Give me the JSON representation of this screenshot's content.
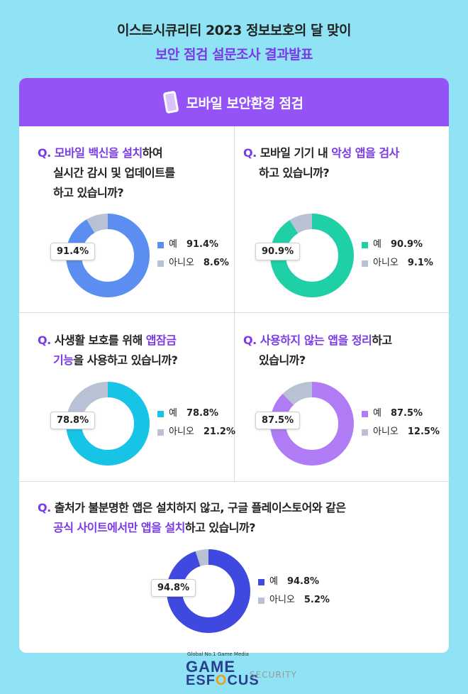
{
  "title": "이스트시큐리티 2023 정보보호의 달 맞이",
  "subtitle": "보안 점검 설문조사 결과발표",
  "section": {
    "title": "모바일 보안환경 점검",
    "icon": "phone-icon"
  },
  "colors": {
    "purple": "#9452f7",
    "accent": "#7a3ae8",
    "no": "#b8c2d4"
  },
  "questions": [
    {
      "q": "Q.",
      "lines": [
        [
          "",
          "모바일 백신을 설치",
          "하여"
        ],
        [
          "실시간 감시 및 업데이트를",
          "",
          ""
        ],
        [
          "하고 있습니까?",
          "",
          ""
        ]
      ]
    },
    {
      "q": "Q.",
      "lines": [
        [
          "모바일 기기 내 ",
          "악성 앱을 검사",
          ""
        ],
        [
          "하고 있습니까?",
          "",
          ""
        ]
      ]
    },
    {
      "q": "Q.",
      "lines": [
        [
          "사생활 보호를 위해 ",
          "앱잠금",
          ""
        ],
        [
          "",
          "기능",
          "을 사용하고 있습니까?"
        ]
      ]
    },
    {
      "q": "Q.",
      "lines": [
        [
          "",
          "사용하지 않는 앱을 정리",
          "하고"
        ],
        [
          "있습니까?",
          "",
          ""
        ]
      ]
    },
    {
      "q": "Q.",
      "lines": [
        [
          "출처가 불분명한 앱은 설치하지 않고, 구글 플레이스토어와 같은",
          "",
          ""
        ],
        [
          "",
          "공식 사이트에서만 앱을 설치",
          "하고 있습니까?"
        ]
      ]
    }
  ],
  "chart_data": [
    {
      "type": "pie",
      "categories": [
        "예",
        "아니오"
      ],
      "values": [
        91.4,
        8.6
      ],
      "labels": [
        "91.4%",
        "8.6%"
      ],
      "callout": "91.4%",
      "colors": [
        "#5b8ef0",
        "#b8c2d4"
      ]
    },
    {
      "type": "pie",
      "categories": [
        "예",
        "아니오"
      ],
      "values": [
        90.9,
        9.1
      ],
      "labels": [
        "90.9%",
        "9.1%"
      ],
      "callout": "90.9%",
      "colors": [
        "#1fcfa6",
        "#b8c2d4"
      ]
    },
    {
      "type": "pie",
      "categories": [
        "예",
        "아니오"
      ],
      "values": [
        78.8,
        21.2
      ],
      "labels": [
        "78.8%",
        "21.2%"
      ],
      "callout": "78.8%",
      "colors": [
        "#18c4e6",
        "#b8c2d4"
      ]
    },
    {
      "type": "pie",
      "categories": [
        "예",
        "아니오"
      ],
      "values": [
        87.5,
        12.5
      ],
      "labels": [
        "87.5%",
        "12.5%"
      ],
      "callout": "87.5%",
      "colors": [
        "#b07cf5",
        "#b8c2d4"
      ]
    },
    {
      "type": "pie",
      "categories": [
        "예",
        "아니오"
      ],
      "values": [
        94.8,
        5.2
      ],
      "labels": [
        "94.8%",
        "5.2%"
      ],
      "callout": "94.8%",
      "colors": [
        "#3f48df",
        "#b8c2d4"
      ]
    }
  ],
  "footer": {
    "tagline": "Global No.1 Game Media",
    "logo_top": "GAME",
    "logo_bottom_a": "ES",
    "logo_bottom_b": "F",
    "logo_bottom_c": "CUS",
    "faint": "SECURITY"
  }
}
